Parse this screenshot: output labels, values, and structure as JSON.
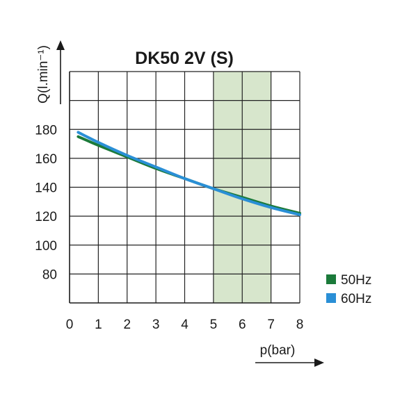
{
  "chart_data": {
    "type": "line",
    "title": "DK50 2V (S)",
    "xlabel": "p(bar)",
    "ylabel": "Q(l.min⁻¹)",
    "x_ticks": [
      0,
      1,
      2,
      3,
      4,
      5,
      6,
      7,
      8
    ],
    "y_ticks": [
      80,
      100,
      120,
      140,
      160,
      180
    ],
    "xlim": [
      0,
      8
    ],
    "ylim": [
      60,
      220
    ],
    "grid": true,
    "highlight_band": {
      "x_range": [
        5,
        7
      ],
      "color": "#d7e6cc"
    },
    "legend_position": "bottom-right",
    "series": [
      {
        "name": "50Hz",
        "color": "#1b7a3a",
        "x": [
          0.3,
          1,
          2,
          3,
          4,
          5,
          6,
          7,
          8
        ],
        "y": [
          175,
          169,
          161,
          153,
          146,
          139,
          133,
          127,
          122
        ]
      },
      {
        "name": "60Hz",
        "color": "#2a8fd6",
        "x": [
          0.3,
          1,
          2,
          3,
          4,
          5,
          6,
          7,
          8
        ],
        "y": [
          178,
          171,
          162,
          154,
          146,
          139,
          132,
          126,
          121
        ]
      }
    ]
  }
}
